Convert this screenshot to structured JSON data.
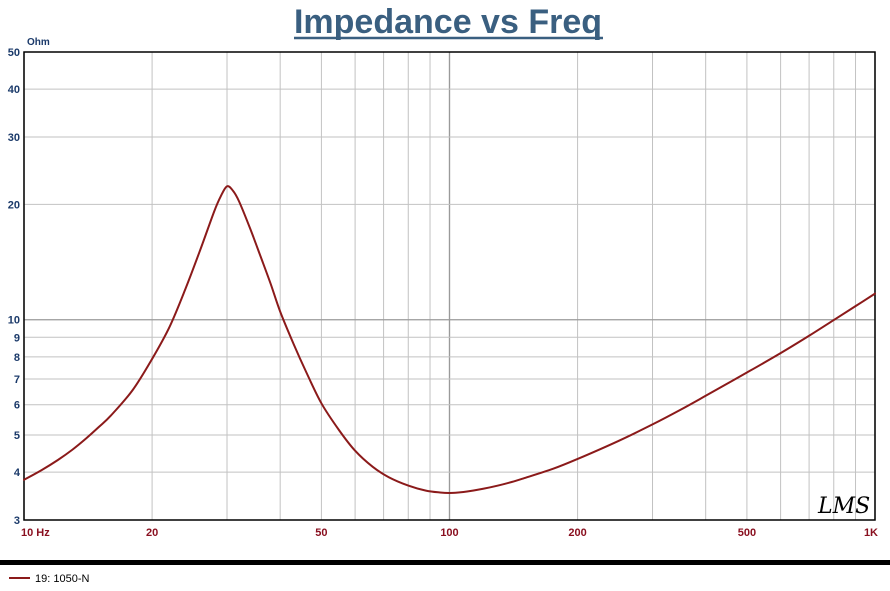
{
  "chart_data": {
    "type": "line",
    "title": "Impedance vs Freq",
    "ylabel": "Ohm",
    "x_scale": "log",
    "y_scale": "log",
    "xlim": [
      10,
      1000
    ],
    "ylim": [
      3,
      50
    ],
    "x_ticks": [
      {
        "value": 10,
        "label": "10  Hz"
      },
      {
        "value": 20,
        "label": "20"
      },
      {
        "value": 50,
        "label": "50"
      },
      {
        "value": 100,
        "label": "100"
      },
      {
        "value": 200,
        "label": "200"
      },
      {
        "value": 500,
        "label": "500"
      },
      {
        "value": 1000,
        "label": "1K"
      }
    ],
    "y_ticks": [
      {
        "value": 3,
        "label": "3"
      },
      {
        "value": 4,
        "label": "4"
      },
      {
        "value": 5,
        "label": "5"
      },
      {
        "value": 6,
        "label": "6"
      },
      {
        "value": 7,
        "label": "7"
      },
      {
        "value": 8,
        "label": "8"
      },
      {
        "value": 9,
        "label": "9"
      },
      {
        "value": 10,
        "label": "10"
      },
      {
        "value": 20,
        "label": "20"
      },
      {
        "value": 30,
        "label": "30"
      },
      {
        "value": 40,
        "label": "40"
      },
      {
        "value": 50,
        "label": "50"
      }
    ],
    "grid": true,
    "legend_position": "bottom-left",
    "series": [
      {
        "name": "19: 1050-N",
        "color": "#8b1a1a",
        "x": [
          10,
          11,
          12,
          13,
          14,
          15,
          16,
          18,
          20,
          22,
          24,
          26,
          28,
          29,
          30,
          31,
          32,
          34,
          36,
          38,
          40,
          43,
          46,
          50,
          55,
          60,
          66,
          72,
          80,
          88,
          95,
          100,
          105,
          110,
          120,
          130,
          140,
          150,
          175,
          200,
          250,
          300,
          350,
          400,
          500,
          600,
          700,
          800,
          900,
          1000
        ],
        "y": [
          3.82,
          4.05,
          4.3,
          4.58,
          4.9,
          5.25,
          5.62,
          6.55,
          7.9,
          9.6,
          12.1,
          15.3,
          19.2,
          21.0,
          22.3,
          21.7,
          20.4,
          17.3,
          14.6,
          12.4,
          10.5,
          8.65,
          7.32,
          6.05,
          5.15,
          4.55,
          4.13,
          3.88,
          3.69,
          3.58,
          3.54,
          3.53,
          3.54,
          3.56,
          3.62,
          3.69,
          3.77,
          3.86,
          4.08,
          4.33,
          4.83,
          5.33,
          5.83,
          6.33,
          7.28,
          8.18,
          9.08,
          9.98,
          10.85,
          11.7
        ]
      }
    ]
  },
  "signature": "LMS"
}
